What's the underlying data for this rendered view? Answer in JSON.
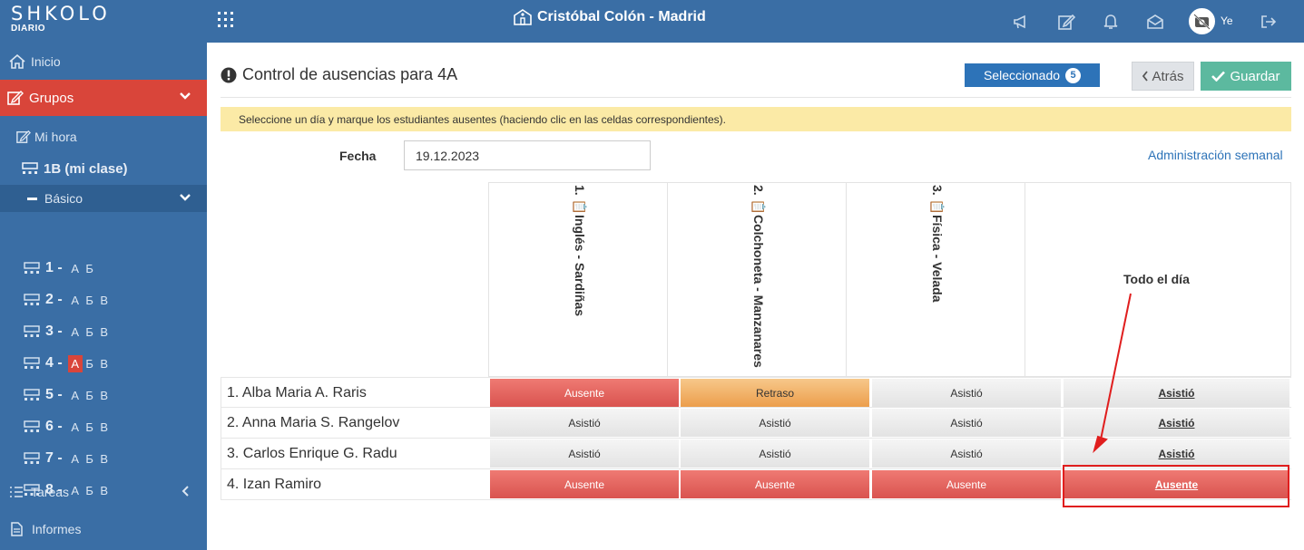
{
  "brand": {
    "name": "SHKOLO",
    "subtitle": "DIARIO"
  },
  "header": {
    "school": "Cristóbal Colón - Madrid",
    "user": "Ye"
  },
  "sidebar": {
    "inicio": "Inicio",
    "grupos": "Grupos",
    "mi_hora": "Mi hora",
    "mi_clase": "1B (mi clase)",
    "basico": "Básico",
    "grades": [
      {
        "num": "1 -",
        "sections": [
          "А",
          "Б"
        ]
      },
      {
        "num": "2 -",
        "sections": [
          "А",
          "Б",
          "В"
        ]
      },
      {
        "num": "3 -",
        "sections": [
          "А",
          "Б",
          "В"
        ]
      },
      {
        "num": "4 -",
        "sections": [
          "А",
          "Б",
          "В"
        ],
        "active": "А"
      },
      {
        "num": "5 -",
        "sections": [
          "А",
          "Б",
          "В"
        ]
      },
      {
        "num": "6 -",
        "sections": [
          "А",
          "Б",
          "В"
        ]
      },
      {
        "num": "7 -",
        "sections": [
          "А",
          "Б",
          "В"
        ]
      },
      {
        "num": "8 -",
        "sections": [
          "А",
          "Б",
          "В"
        ]
      }
    ],
    "tareas": "Tareas",
    "informes": "Informes"
  },
  "main": {
    "title": "Control de ausencias para 4A",
    "selected_label": "Seleccionado",
    "selected_count": "5",
    "back_label": "Atrás",
    "save_label": "Guardar",
    "alert": "Seleccione un día y marque los estudiantes ausentes (haciendo clic en las celdas correspondientes).",
    "fecha_label": "Fecha",
    "fecha_value": "19.12.2023",
    "admin_link": "Administración semanal",
    "columns": [
      "1. 📋Inglés - Sardiñas",
      "2. 📋Colchoneta - Manzanares",
      "3. 📋Física - Velada"
    ],
    "all_day_label": "Todo el día",
    "students": [
      {
        "name": "1. Alba Maria A. Raris",
        "cells": [
          "Ausente",
          "Retraso",
          "Asistió"
        ],
        "all_day": "Asistió"
      },
      {
        "name": "2. Anna Maria S. Rangelov",
        "cells": [
          "Asistió",
          "Asistió",
          "Asistió"
        ],
        "all_day": "Asistió"
      },
      {
        "name": "3. Carlos Enrique G. Radu",
        "cells": [
          "Asistió",
          "Asistió",
          "Asistió"
        ],
        "all_day": "Asistió"
      },
      {
        "name": "4. Izan Ramiro",
        "cells": [
          "Ausente",
          "Ausente",
          "Ausente"
        ],
        "all_day": "Ausente"
      }
    ]
  },
  "colors": {
    "primary": "#3a6ea5",
    "danger": "#d9534f",
    "warning": "#ec9e4c",
    "success": "#5cb99f",
    "annotation": "#e01e1e"
  }
}
